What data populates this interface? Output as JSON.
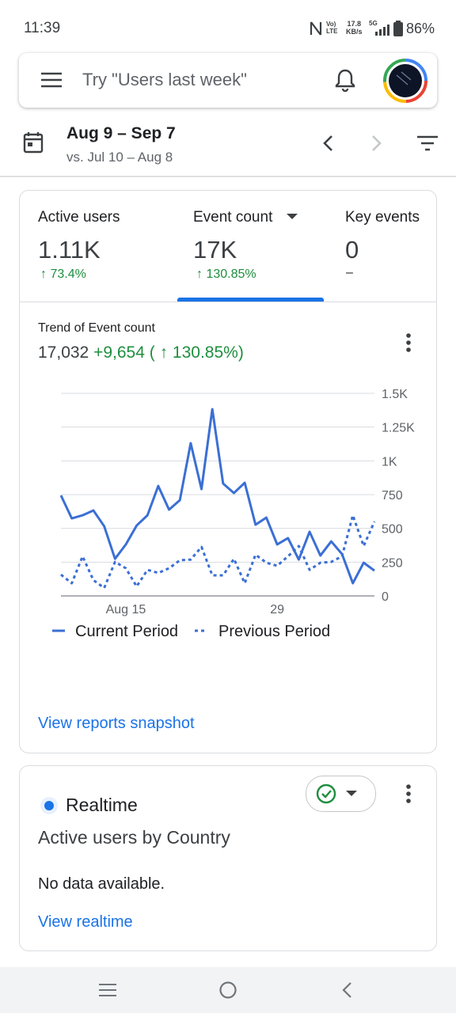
{
  "status_bar": {
    "time": "11:39",
    "speed_value": "17.8",
    "speed_unit": "KB/s",
    "signal": "5G",
    "battery": "86%"
  },
  "search": {
    "placeholder": "Try \"Users last week\""
  },
  "date_range": {
    "current": "Aug 9 – Sep 7",
    "comparison": "vs. Jul 10 – Aug 8"
  },
  "metrics": [
    {
      "label": "Active users",
      "value": "1.11K",
      "change": "↑ 73.4%"
    },
    {
      "label": "Event count",
      "value": "17K",
      "change": "↑ 130.85%"
    },
    {
      "label": "Key events",
      "value": "0",
      "change": "–"
    }
  ],
  "chart_data": {
    "type": "line",
    "title": "Trend of Event count",
    "total": "17,032",
    "delta": "+9,654",
    "delta_percent": "( ↑ 130.85%)",
    "categories": [
      null,
      null,
      null,
      null,
      null,
      null,
      "Aug 15",
      null,
      null,
      null,
      null,
      null,
      null,
      null,
      null,
      null,
      null,
      null,
      null,
      null,
      "29",
      null,
      null,
      null,
      null,
      null,
      null,
      null,
      null,
      null
    ],
    "series": [
      {
        "name": "Current Period",
        "color": "#3b6fd4",
        "style": "solid",
        "values": [
          744,
          574,
          597,
          633,
          516,
          275,
          381,
          521,
          597,
          814,
          639,
          709,
          1131,
          791,
          1383,
          832,
          762,
          838,
          527,
          580,
          381,
          428,
          269,
          475,
          299,
          404,
          310,
          94,
          246,
          187
        ]
      },
      {
        "name": "Previous Period",
        "color": "#3b6fd4",
        "style": "dotted",
        "values": [
          158,
          94,
          293,
          117,
          59,
          252,
          205,
          70,
          193,
          170,
          205,
          264,
          269,
          363,
          152,
          152,
          275,
          94,
          305,
          246,
          223,
          293,
          369,
          193,
          246,
          252,
          293,
          597,
          369,
          551
        ]
      }
    ],
    "ylim": [
      0,
      1500
    ],
    "yticks": [
      0,
      250,
      500,
      750,
      {
        "value": 1000,
        "label": "1K"
      },
      {
        "value": 1250,
        "label": "1.25K"
      },
      {
        "value": 1500,
        "label": "1.5K"
      }
    ],
    "grid": true
  },
  "snapshot_link": "View reports snapshot",
  "realtime": {
    "label": "Realtime",
    "title": "Active users by Country",
    "message": "No data available.",
    "link": "View realtime"
  }
}
